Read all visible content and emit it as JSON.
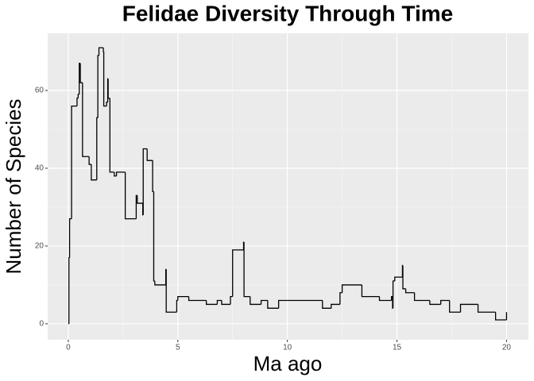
{
  "chart_data": {
    "type": "line",
    "step": "hv",
    "title": "Felidae Diversity Through Time",
    "x_label": "Ma ago",
    "y_label": "Number of Species",
    "x": [
      0,
      0.03,
      0.06,
      0.15,
      0.4,
      0.45,
      0.5,
      0.55,
      0.65,
      0.95,
      1.05,
      1.3,
      1.35,
      1.4,
      1.6,
      1.62,
      1.75,
      1.8,
      1.82,
      1.9,
      2.1,
      2.2,
      2.6,
      3.1,
      3.15,
      3.4,
      3.42,
      3.6,
      3.85,
      3.9,
      3.95,
      4.45,
      4.47,
      4.95,
      5.0,
      5.5,
      6.3,
      6.8,
      7.0,
      7.4,
      7.5,
      8.0,
      8.02,
      8.3,
      8.8,
      9.1,
      9.6,
      11.6,
      12.0,
      12.4,
      12.5,
      13.4,
      14.2,
      14.75,
      14.8,
      14.82,
      14.9,
      15.25,
      15.27,
      15.4,
      15.8,
      16.5,
      17.0,
      17.4,
      17.9,
      18.7,
      19.5,
      20.0
    ],
    "series": [
      {
        "name": "Species",
        "color": "#000000",
        "values": [
          0,
          17,
          27,
          56,
          58,
          59,
          67,
          62,
          43,
          41,
          37,
          53,
          69,
          71,
          70,
          56,
          57,
          63,
          58,
          39,
          38,
          39,
          27,
          33,
          31,
          28,
          45,
          42,
          34,
          11,
          10,
          14,
          3,
          6,
          7,
          6,
          5,
          6,
          5,
          7,
          19,
          21,
          7,
          5,
          6,
          4,
          6,
          4,
          5,
          8,
          10,
          7,
          6,
          7,
          4,
          11,
          12,
          15,
          9,
          8,
          6,
          5,
          6,
          3,
          5,
          3,
          1,
          3
        ]
      }
    ],
    "xlim": [
      -0.94,
      21.0
    ],
    "ylim": [
      -4.1,
      74.7
    ],
    "xticks": [
      0,
      5,
      10,
      15,
      20
    ],
    "yticks": [
      0,
      20,
      40,
      60
    ],
    "grid": true
  }
}
